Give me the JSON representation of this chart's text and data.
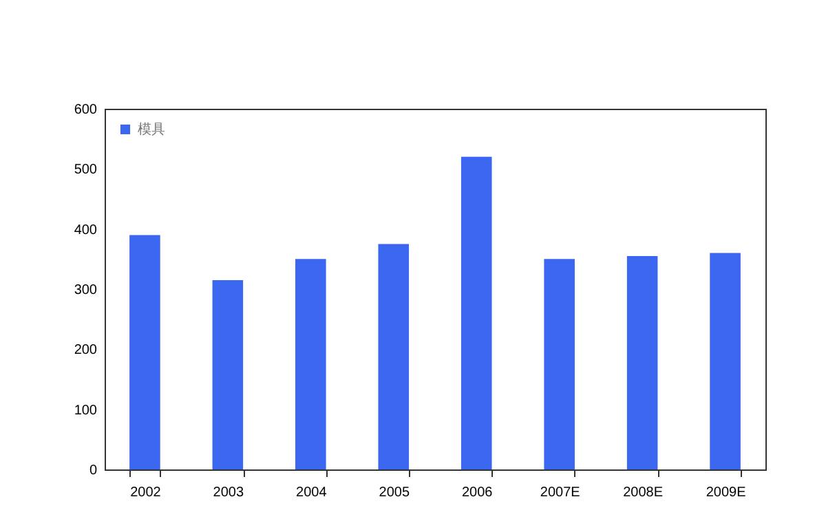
{
  "chart_data": {
    "type": "bar",
    "categories": [
      "2002",
      "2003",
      "2004",
      "2005",
      "2006",
      "2007E",
      "2008E",
      "2009E"
    ],
    "series": [
      {
        "name": "模具",
        "color": "#3a66f0",
        "values": [
          390,
          315,
          350,
          375,
          520,
          350,
          355,
          360
        ]
      }
    ],
    "ylim": [
      0,
      600
    ],
    "yticks": [
      0,
      100,
      200,
      300,
      400,
      500,
      600
    ],
    "legend": "top left",
    "grid": false
  }
}
